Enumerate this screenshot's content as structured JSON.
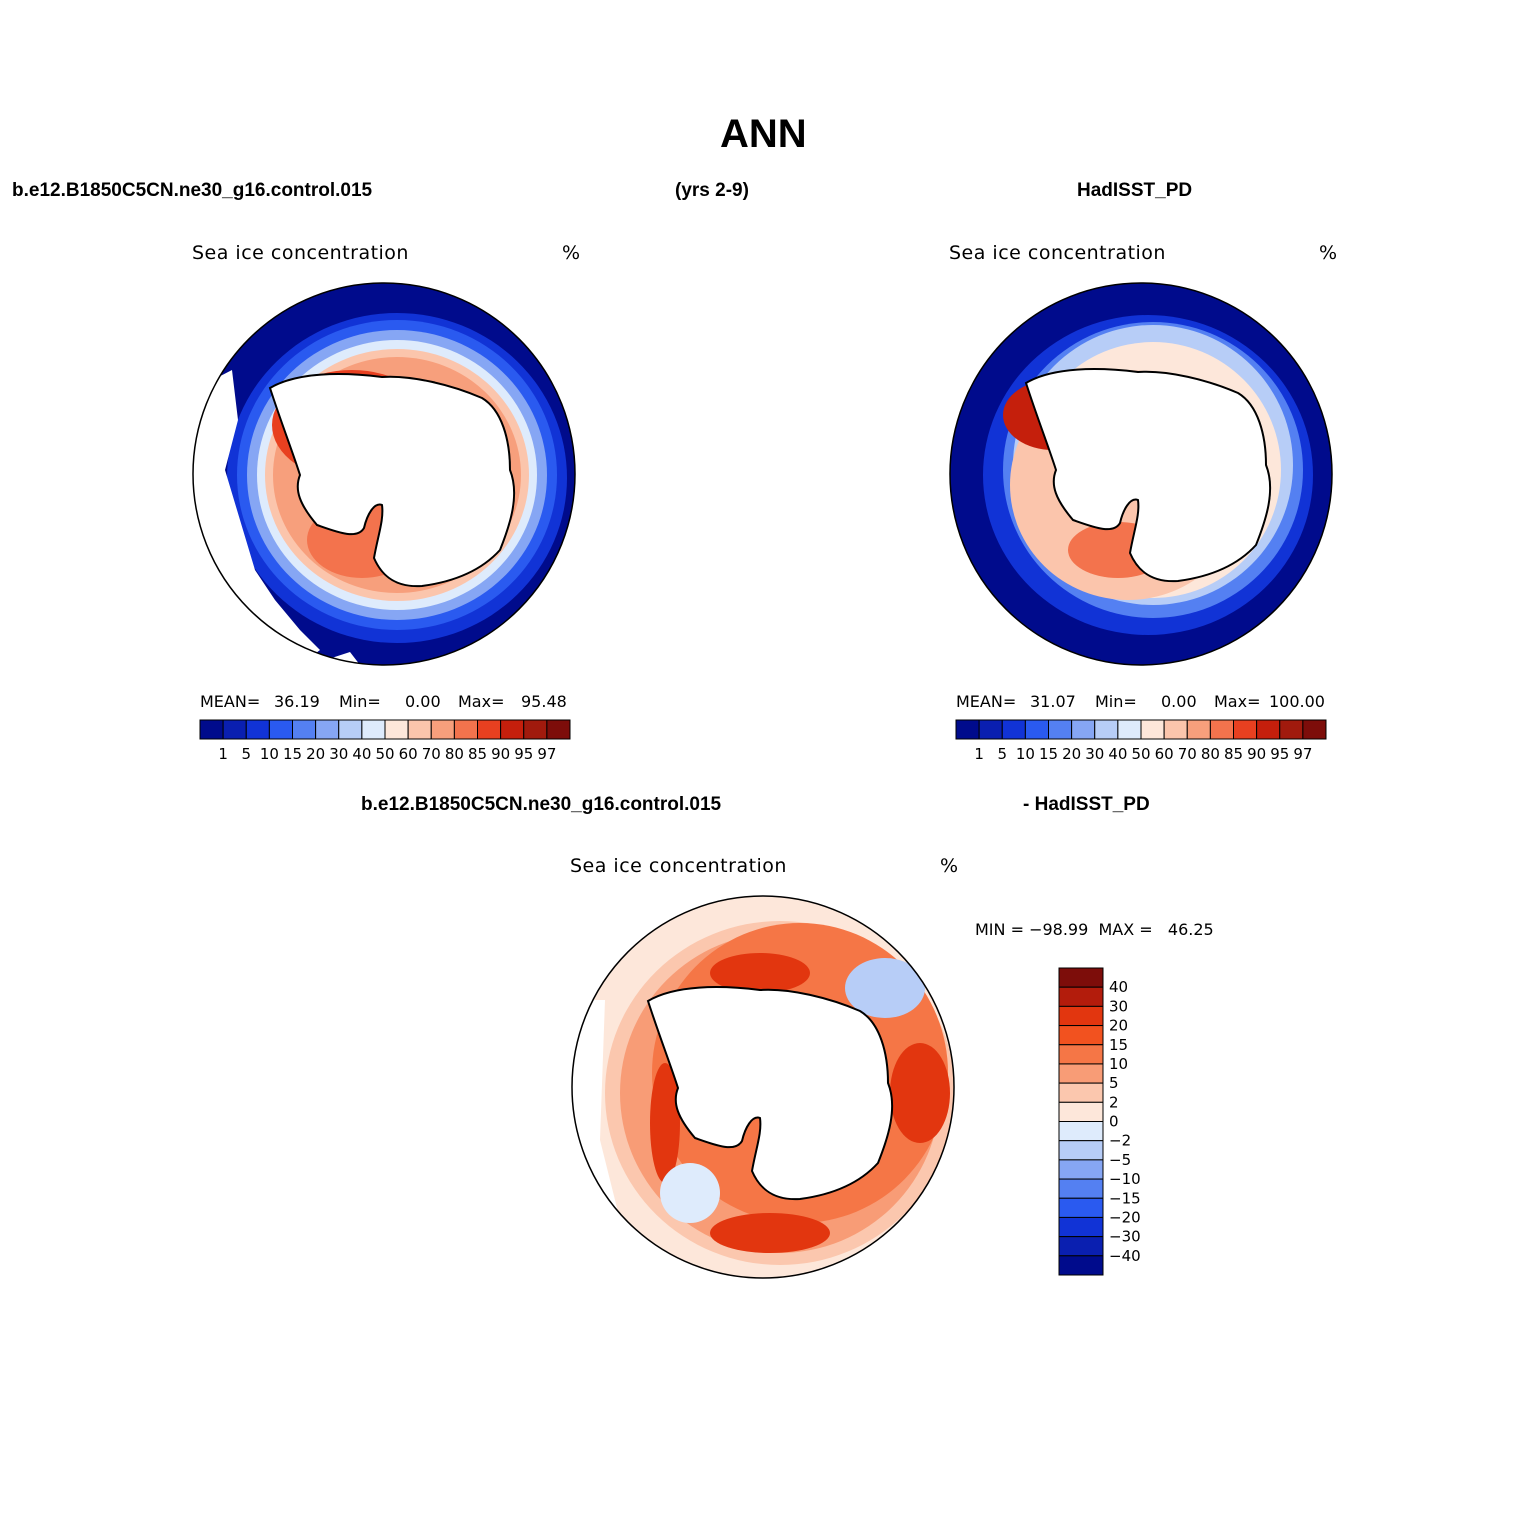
{
  "title": "ANN",
  "header": {
    "left": "b.e12.B1850C5CN.ne30_g16.control.015",
    "center": "(yrs 2-9)",
    "right": "HadISST_PD",
    "diff_left": "b.e12.B1850C5CN.ne30_g16.control.015",
    "diff_right": "- HadISST_PD"
  },
  "panels": {
    "model": {
      "variable": "Sea ice concentration",
      "units": "%",
      "mean_label": "MEAN=",
      "mean": "36.19",
      "min_label": "Min=",
      "min": "0.00",
      "max_label": "Max=",
      "max": "95.48"
    },
    "obs": {
      "variable": "Sea ice concentration",
      "units": "%",
      "mean_label": "MEAN=",
      "mean": "31.07",
      "min_label": "Min=",
      "min": "0.00",
      "max_label": "Max=",
      "max": "100.00"
    },
    "diff": {
      "variable": "Sea ice concentration",
      "units": "%",
      "minmax": "MIN = −98.99  MAX =   46.25"
    }
  },
  "colorbar_abs": {
    "levels": [
      "1",
      "5",
      "10",
      "15",
      "20",
      "30",
      "40",
      "50",
      "60",
      "70",
      "80",
      "85",
      "90",
      "95",
      "97"
    ],
    "colors": [
      "#000b8c",
      "#0a1fb0",
      "#1133d6",
      "#2a5af0",
      "#5480f2",
      "#86a6f4",
      "#b7cdf7",
      "#deebfc",
      "#fde7da",
      "#fbc5ac",
      "#f79f7c",
      "#f3734d",
      "#e84020",
      "#c51f0c",
      "#a11a0d",
      "#7d0d0a"
    ]
  },
  "colorbar_diff": {
    "levels": [
      "40",
      "30",
      "20",
      "15",
      "10",
      "5",
      "2",
      "0",
      "−2",
      "−5",
      "−10",
      "−15",
      "−20",
      "−30",
      "−40"
    ],
    "colors": [
      "#7d0d0a",
      "#b31c0c",
      "#e2360f",
      "#f2521f",
      "#f57646",
      "#f89c76",
      "#fbc7ae",
      "#fde7da",
      "#deebfc",
      "#b7cdf7",
      "#86a6f4",
      "#5480f2",
      "#2a5af0",
      "#1133d6",
      "#0a1fb0",
      "#000b8c"
    ]
  }
}
